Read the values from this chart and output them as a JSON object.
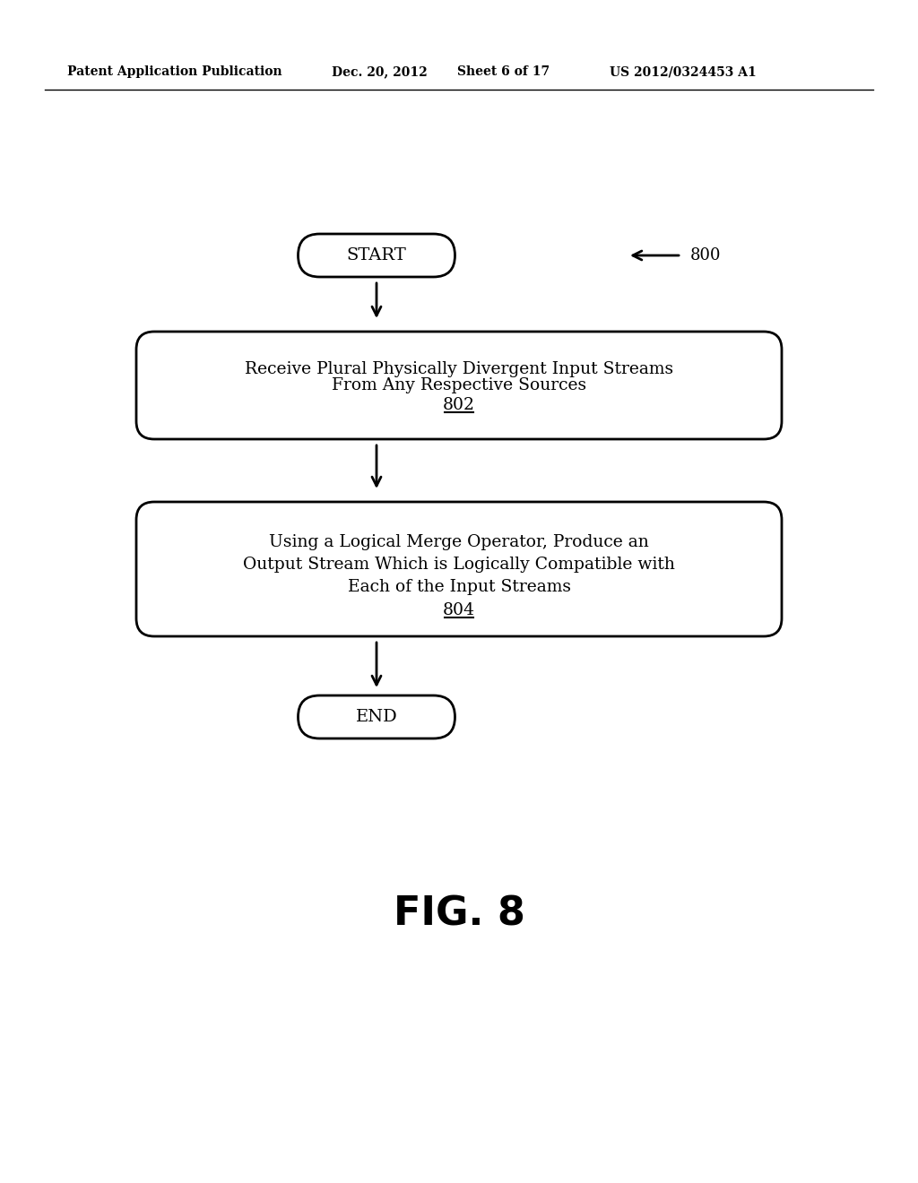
{
  "bg_color": "#ffffff",
  "header_text": "Patent Application Publication",
  "header_date": "Dec. 20, 2012",
  "header_sheet": "Sheet 6 of 17",
  "header_patent": "US 2012/0324453 A1",
  "fig_label": "FIG. 8",
  "diagram_label": "800",
  "start_text": "START",
  "end_text": "END",
  "box1_line1": "Receive Plural Physically Divergent Input Streams",
  "box1_line2": "From Any Respective Sources",
  "box1_ref": "802",
  "box2_line1": "Using a Logical Merge Operator, Produce an",
  "box2_line2": "Output Stream Which is Logically Compatible with",
  "box2_line3": "Each of the Input Streams",
  "box2_ref": "804",
  "text_color": "#000000",
  "box_edge_color": "#000000",
  "arrow_color": "#000000"
}
